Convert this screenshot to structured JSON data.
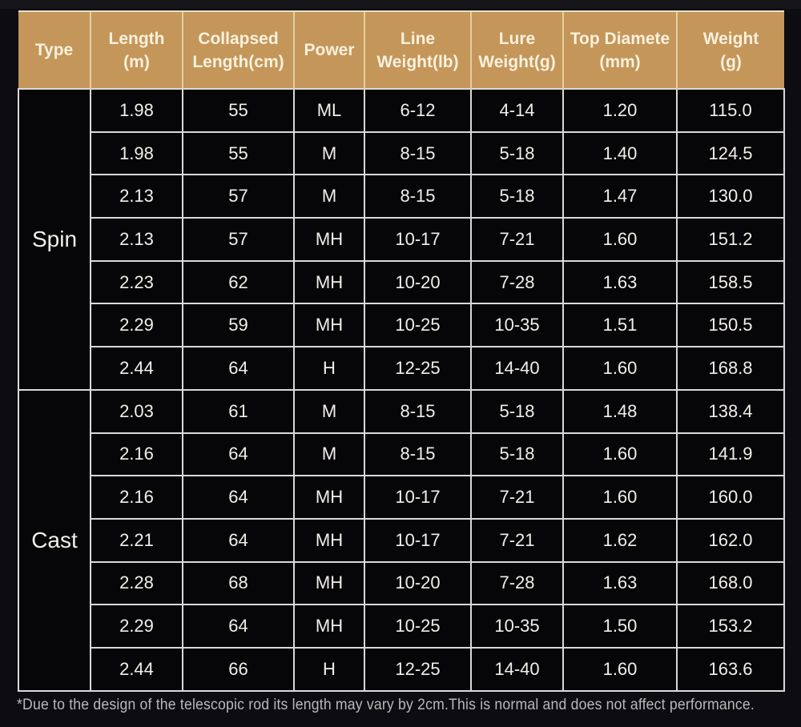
{
  "table": {
    "headers": [
      {
        "line1": "Type",
        "line2": ""
      },
      {
        "line1": "Length",
        "line2": "(m)"
      },
      {
        "line1": "Collapsed",
        "line2": "Length(cm)"
      },
      {
        "line1": "Power",
        "line2": ""
      },
      {
        "line1": "Line",
        "line2": "Weight(lb)"
      },
      {
        "line1": "Lure",
        "line2": "Weight(g)"
      },
      {
        "line1": "Top Diamete",
        "line2": "(mm)"
      },
      {
        "line1": "Weight",
        "line2": "(g)"
      }
    ],
    "sections": [
      {
        "type": "Spin",
        "rows": [
          [
            "1.98",
            "55",
            "ML",
            "6-12",
            "4-14",
            "1.20",
            "115.0"
          ],
          [
            "1.98",
            "55",
            "M",
            "8-15",
            "5-18",
            "1.40",
            "124.5"
          ],
          [
            "2.13",
            "57",
            "M",
            "8-15",
            "5-18",
            "1.47",
            "130.0"
          ],
          [
            "2.13",
            "57",
            "MH",
            "10-17",
            "7-21",
            "1.60",
            "151.2"
          ],
          [
            "2.23",
            "62",
            "MH",
            "10-20",
            "7-28",
            "1.63",
            "158.5"
          ],
          [
            "2.29",
            "59",
            "MH",
            "10-25",
            "10-35",
            "1.51",
            "150.5"
          ],
          [
            "2.44",
            "64",
            "H",
            "12-25",
            "14-40",
            "1.60",
            "168.8"
          ]
        ]
      },
      {
        "type": "Cast",
        "rows": [
          [
            "2.03",
            "61",
            "M",
            "8-15",
            "5-18",
            "1.48",
            "138.4"
          ],
          [
            "2.16",
            "64",
            "M",
            "8-15",
            "5-18",
            "1.60",
            "141.9"
          ],
          [
            "2.16",
            "64",
            "MH",
            "10-17",
            "7-21",
            "1.60",
            "160.0"
          ],
          [
            "2.21",
            "64",
            "MH",
            "10-17",
            "7-21",
            "1.62",
            "162.0"
          ],
          [
            "2.28",
            "68",
            "MH",
            "10-20",
            "7-28",
            "1.63",
            "168.0"
          ],
          [
            "2.29",
            "64",
            "MH",
            "10-25",
            "10-35",
            "1.50",
            "153.2"
          ],
          [
            "2.44",
            "66",
            "H",
            "12-25",
            "14-40",
            "1.60",
            "163.6"
          ]
        ]
      }
    ]
  },
  "footnote": "*Due to the design of the telescopic rod its length may vary by 2cm.This is normal and does not affect performance.",
  "colors": {
    "page_bg": "#0d0d11",
    "header_bg": "#c4965a",
    "header_text": "#f9f1dd",
    "header_divider": "#e6cf9f",
    "header_top_border": "#e9e0c6",
    "cell_bg": "#060608",
    "cell_text": "#f2efe9",
    "grid": "#d9d9d9",
    "footnote_text": "#b9b9b9"
  }
}
